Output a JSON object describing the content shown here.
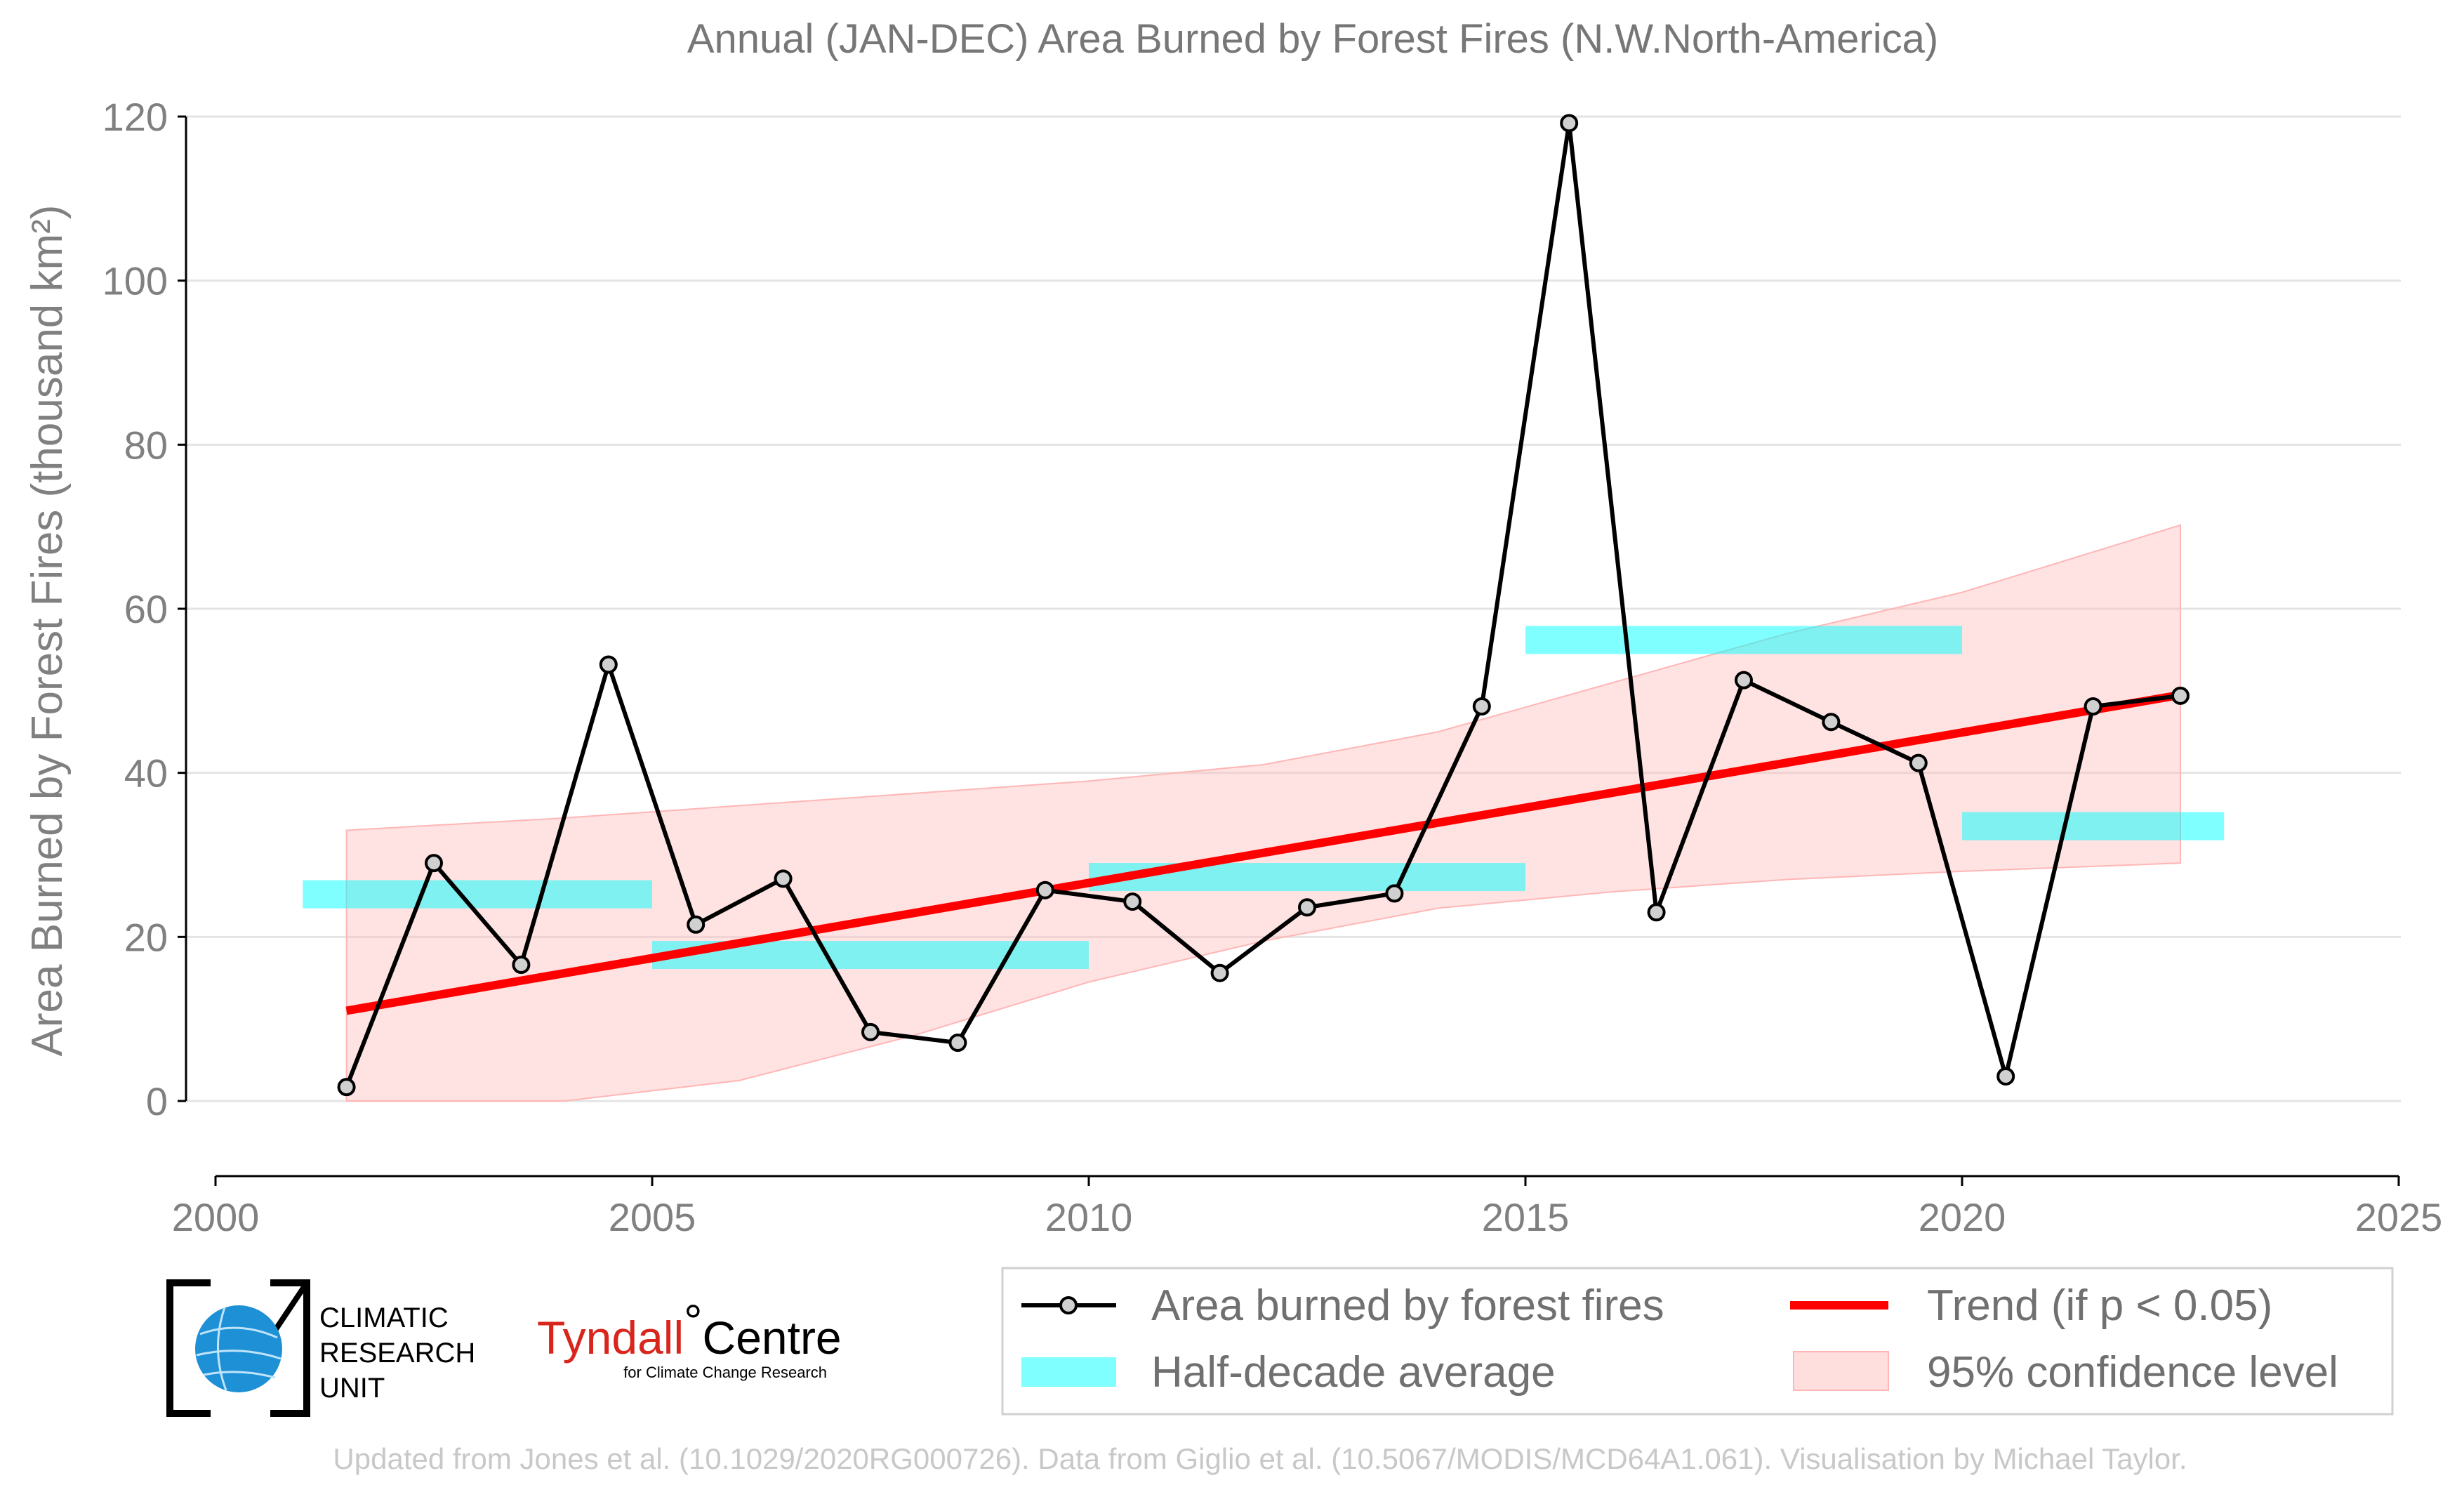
{
  "chart_data": {
    "type": "line",
    "title": "Annual (JAN-DEC) Area Burned by Forest Fires (N.W.North-America)",
    "ylabel": "Area Burned by Forest Fires (thousand km²)",
    "xlabel": "",
    "xlim": [
      2000,
      2025
    ],
    "ylim": [
      -9,
      120
    ],
    "x_ticks": [
      2000,
      2005,
      2010,
      2015,
      2020,
      2025
    ],
    "y_ticks": [
      0,
      20,
      40,
      60,
      80,
      100,
      120
    ],
    "grid": "horizontal",
    "legend_position": "bottom-right",
    "series": [
      {
        "name": "Area burned by forest fires",
        "color": "#000000",
        "marker_fill": "#d0d0d0",
        "x": [
          2001.5,
          2002.5,
          2003.5,
          2004.5,
          2005.5,
          2006.5,
          2007.5,
          2008.5,
          2009.5,
          2010.5,
          2011.5,
          2012.5,
          2013.5,
          2014.5,
          2015.5,
          2016.5,
          2017.5,
          2018.5,
          2019.5,
          2020.5,
          2021.5,
          2022.5
        ],
        "values": [
          1.7,
          29.0,
          16.6,
          53.2,
          21.5,
          27.1,
          8.4,
          7.1,
          25.7,
          24.3,
          15.6,
          23.6,
          25.3,
          48.1,
          119.2,
          23.0,
          51.3,
          46.2,
          41.2,
          3.0,
          48.1,
          49.4
        ]
      },
      {
        "name": "Trend (if p < 0.05)",
        "color": "#ff0000",
        "x": [
          2001.5,
          2022.5
        ],
        "values": [
          11.0,
          49.5
        ]
      }
    ],
    "half_decade_average": {
      "name": "Half-decade average",
      "color": "#00ffff",
      "segments": [
        {
          "x0": 2001,
          "x1": 2005,
          "value": 25.2
        },
        {
          "x0": 2005,
          "x1": 2010,
          "value": 17.8
        },
        {
          "x0": 2010,
          "x1": 2015,
          "value": 27.3
        },
        {
          "x0": 2015,
          "x1": 2020,
          "value": 56.2
        },
        {
          "x0": 2020,
          "x1": 2023,
          "value": 33.5
        }
      ]
    },
    "confidence_band": {
      "name": "95% confidence level",
      "color": "#ffb6b6",
      "x": [
        2001.5,
        2004,
        2006,
        2008,
        2010,
        2012,
        2014,
        2016,
        2018,
        2020,
        2022.5
      ],
      "upper": [
        33.0,
        34.5,
        36.0,
        37.5,
        39.0,
        41.0,
        45.0,
        51.0,
        57.0,
        62.0,
        70.2
      ],
      "lower": [
        0.0,
        0.0,
        2.5,
        8.0,
        14.5,
        19.5,
        23.5,
        25.5,
        27.0,
        28.0,
        29.0
      ]
    }
  },
  "logos": {
    "cru_lines": [
      "CLIMATIC",
      "RESEARCH",
      "UNIT"
    ],
    "tyndall_main": "Tyndall",
    "tyndall_degree": "°",
    "tyndall_centre": "Centre",
    "tyndall_sub": "for Climate Change Research"
  },
  "footer": "Updated from Jones et al. (10.1029/2020RG000726). Data from Giglio et al. (10.5067/MODIS/MCD64A1.061). Visualisation by Michael Taylor."
}
